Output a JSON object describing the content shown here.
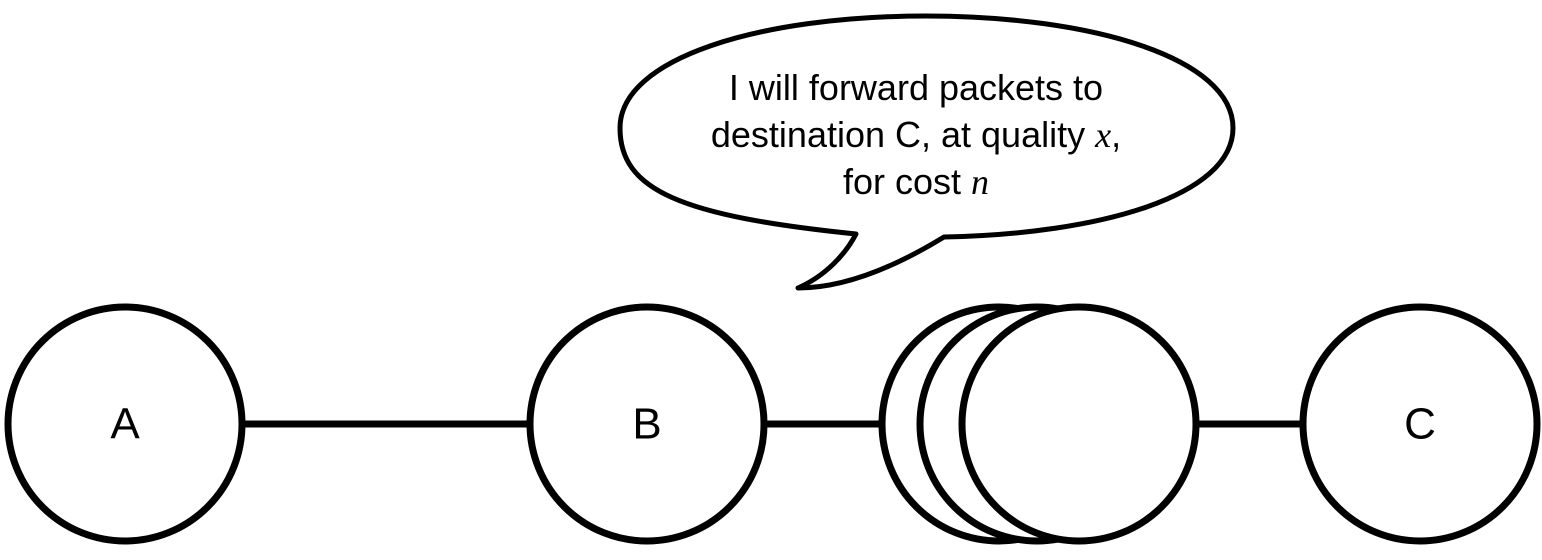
{
  "colors": {
    "stroke": "#000000",
    "fill": "#ffffff",
    "text": "#000000"
  },
  "nodes": {
    "a": {
      "label": "A"
    },
    "b": {
      "label": "B"
    },
    "c": {
      "label": "C"
    }
  },
  "speech_bubble": {
    "line1": "I will forward packets to",
    "line2_prefix": "destination C, at quality ",
    "line2_var": "x",
    "line2_suffix": ",",
    "line3_prefix": "for cost ",
    "line3_var": "n"
  }
}
